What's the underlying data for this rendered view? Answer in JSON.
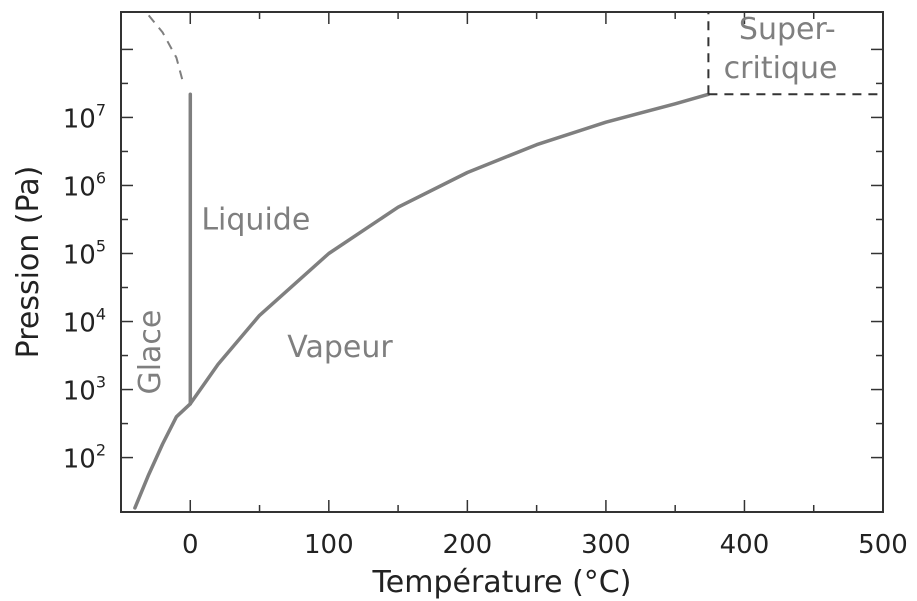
{
  "chart_data": {
    "type": "line",
    "xlabel": "Température (°C)",
    "ylabel": "Pression (Pa)",
    "xlim": [
      -50,
      500
    ],
    "ylim_log10": [
      1.2,
      8.55
    ],
    "yscale": "log",
    "x_ticks": [
      0,
      100,
      200,
      300,
      400,
      500
    ],
    "y_ticks": [
      {
        "base": "10",
        "exp": "2",
        "log": 2
      },
      {
        "base": "10",
        "exp": "3",
        "log": 3
      },
      {
        "base": "10",
        "exp": "4",
        "log": 4
      },
      {
        "base": "10",
        "exp": "5",
        "log": 5
      },
      {
        "base": "10",
        "exp": "6",
        "log": 6
      },
      {
        "base": "10",
        "exp": "7",
        "log": 7
      }
    ],
    "grid": false,
    "line_color": "#7f7f7f",
    "series": [
      {
        "kind": "vaporization",
        "style": "solid",
        "x": [
          -40,
          -30,
          -20,
          -10,
          0.01,
          20,
          50,
          100,
          150,
          200,
          250,
          300,
          350,
          374
        ],
        "y_log10": [
          1.26,
          1.75,
          2.2,
          2.6,
          2.79,
          3.37,
          4.09,
          5.0,
          5.68,
          6.19,
          6.6,
          6.93,
          7.2,
          7.34
        ]
      },
      {
        "kind": "fusion",
        "style": "solid",
        "x": [
          0.01,
          0.01
        ],
        "y_log10": [
          2.79,
          7.34
        ]
      },
      {
        "kind": "fusion-extension",
        "style": "dashed",
        "x": [
          -30,
          -20,
          -10,
          -5
        ],
        "y_log10": [
          8.5,
          8.25,
          7.88,
          7.5
        ]
      },
      {
        "kind": "supercritical-boundary-vertical",
        "style": "dashed",
        "x": [
          374,
          374
        ],
        "y_log10": [
          7.34,
          8.55
        ]
      },
      {
        "kind": "supercritical-boundary-horizontal",
        "style": "dashed",
        "x": [
          374,
          500
        ],
        "y_log10": [
          7.34,
          7.34
        ]
      }
    ],
    "annotations": [
      {
        "text": "Liquide",
        "x": 8,
        "y_log10": 5.35
      },
      {
        "text": "Vapeur",
        "x": 70,
        "y_log10": 3.48
      },
      {
        "text": "Glace",
        "x": -22,
        "y_log10": 3.55,
        "rotation": -90
      },
      {
        "text": "Super-",
        "x": 396,
        "y_log10": 8.15
      },
      {
        "text": "critique",
        "x": 385,
        "y_log10": 7.58
      }
    ]
  }
}
